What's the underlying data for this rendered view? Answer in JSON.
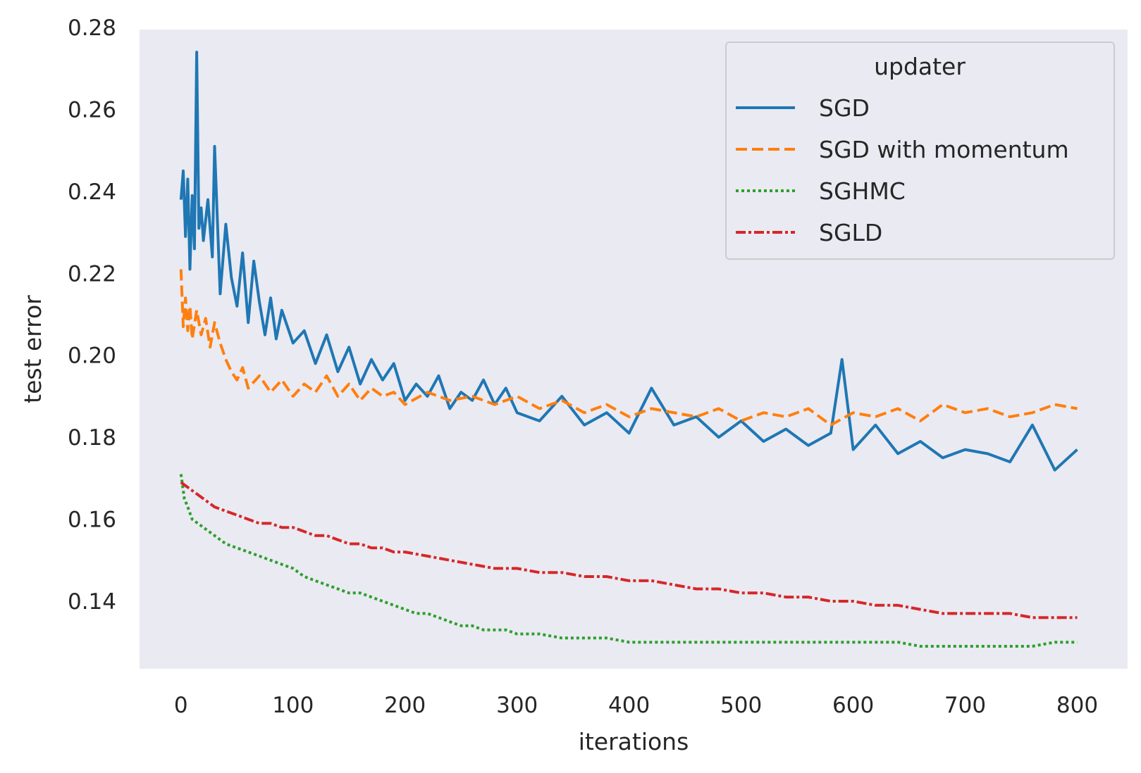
{
  "chart_data": {
    "type": "line",
    "xlabel": "iterations",
    "ylabel": "test error",
    "xlim": [
      -37,
      845
    ],
    "ylim": [
      0.1235,
      0.2795
    ],
    "x_ticks": [
      0,
      100,
      200,
      300,
      400,
      500,
      600,
      700,
      800
    ],
    "y_ticks": [
      0.14,
      0.16,
      0.18,
      0.2,
      0.22,
      0.24,
      0.26,
      0.28
    ],
    "x_tick_labels": [
      "0",
      "100",
      "200",
      "300",
      "400",
      "500",
      "600",
      "700",
      "800"
    ],
    "y_tick_labels": [
      "0.14",
      "0.16",
      "0.18",
      "0.20",
      "0.22",
      "0.24",
      "0.26",
      "0.28"
    ],
    "grid": false,
    "background": "#eaeaf2",
    "legend": {
      "title": "updater",
      "placement": "top-right"
    },
    "series": [
      {
        "name": "SGD",
        "color": "#1f77b4",
        "dash": "solid",
        "x": [
          0,
          2,
          4,
          6,
          8,
          10,
          12,
          14,
          16,
          18,
          20,
          24,
          28,
          30,
          35,
          40,
          45,
          50,
          55,
          60,
          65,
          70,
          75,
          80,
          85,
          90,
          100,
          110,
          120,
          130,
          140,
          150,
          160,
          170,
          180,
          190,
          200,
          210,
          220,
          230,
          240,
          250,
          260,
          270,
          280,
          290,
          300,
          320,
          340,
          360,
          380,
          400,
          420,
          440,
          460,
          480,
          500,
          520,
          540,
          560,
          580,
          590,
          600,
          620,
          640,
          660,
          680,
          700,
          720,
          740,
          760,
          780,
          800
        ],
        "y": [
          0.238,
          0.245,
          0.229,
          0.243,
          0.221,
          0.239,
          0.226,
          0.274,
          0.231,
          0.236,
          0.228,
          0.238,
          0.224,
          0.251,
          0.215,
          0.232,
          0.219,
          0.212,
          0.225,
          0.208,
          0.223,
          0.213,
          0.205,
          0.214,
          0.204,
          0.211,
          0.203,
          0.206,
          0.198,
          0.205,
          0.196,
          0.202,
          0.193,
          0.199,
          0.194,
          0.198,
          0.189,
          0.193,
          0.19,
          0.195,
          0.187,
          0.191,
          0.189,
          0.194,
          0.188,
          0.192,
          0.186,
          0.184,
          0.19,
          0.183,
          0.186,
          0.181,
          0.192,
          0.183,
          0.185,
          0.18,
          0.184,
          0.179,
          0.182,
          0.178,
          0.181,
          0.199,
          0.177,
          0.183,
          0.176,
          0.179,
          0.175,
          0.177,
          0.176,
          0.174,
          0.183,
          0.172,
          0.177
        ]
      },
      {
        "name": "SGD with momentum",
        "color": "#ff7f0e",
        "dash": "dashed",
        "x": [
          0,
          2,
          4,
          6,
          8,
          10,
          14,
          18,
          22,
          26,
          30,
          35,
          40,
          45,
          50,
          55,
          60,
          70,
          80,
          90,
          100,
          110,
          120,
          130,
          140,
          150,
          160,
          170,
          180,
          190,
          200,
          220,
          240,
          260,
          280,
          300,
          320,
          340,
          360,
          380,
          400,
          420,
          440,
          460,
          480,
          500,
          520,
          540,
          560,
          580,
          600,
          620,
          640,
          660,
          680,
          700,
          720,
          740,
          760,
          780,
          800
        ],
        "y": [
          0.221,
          0.207,
          0.214,
          0.206,
          0.212,
          0.204,
          0.211,
          0.205,
          0.209,
          0.202,
          0.208,
          0.203,
          0.199,
          0.196,
          0.194,
          0.197,
          0.192,
          0.195,
          0.191,
          0.194,
          0.19,
          0.193,
          0.191,
          0.195,
          0.19,
          0.193,
          0.189,
          0.192,
          0.19,
          0.191,
          0.188,
          0.191,
          0.189,
          0.19,
          0.188,
          0.19,
          0.187,
          0.189,
          0.186,
          0.188,
          0.185,
          0.187,
          0.186,
          0.185,
          0.187,
          0.184,
          0.186,
          0.185,
          0.187,
          0.183,
          0.186,
          0.185,
          0.187,
          0.184,
          0.188,
          0.186,
          0.187,
          0.185,
          0.186,
          0.188,
          0.187
        ]
      },
      {
        "name": "SGHMC",
        "color": "#2ca02c",
        "dash": "dotted",
        "x": [
          0,
          3,
          6,
          10,
          15,
          20,
          30,
          40,
          50,
          60,
          70,
          80,
          90,
          100,
          110,
          120,
          130,
          140,
          150,
          160,
          170,
          180,
          190,
          200,
          210,
          220,
          230,
          240,
          250,
          260,
          270,
          280,
          290,
          300,
          320,
          340,
          360,
          380,
          400,
          420,
          440,
          460,
          480,
          500,
          520,
          540,
          560,
          580,
          600,
          620,
          640,
          660,
          680,
          700,
          720,
          740,
          760,
          780,
          800
        ],
        "y": [
          0.171,
          0.165,
          0.163,
          0.16,
          0.159,
          0.158,
          0.156,
          0.154,
          0.153,
          0.152,
          0.151,
          0.15,
          0.149,
          0.148,
          0.146,
          0.145,
          0.144,
          0.143,
          0.142,
          0.142,
          0.141,
          0.14,
          0.139,
          0.138,
          0.137,
          0.137,
          0.136,
          0.135,
          0.134,
          0.134,
          0.133,
          0.133,
          0.133,
          0.132,
          0.132,
          0.131,
          0.131,
          0.131,
          0.13,
          0.13,
          0.13,
          0.13,
          0.13,
          0.13,
          0.13,
          0.13,
          0.13,
          0.13,
          0.13,
          0.13,
          0.13,
          0.129,
          0.129,
          0.129,
          0.129,
          0.129,
          0.129,
          0.13,
          0.13
        ]
      },
      {
        "name": "SGLD",
        "color": "#d62728",
        "dash": "dashdot",
        "x": [
          0,
          5,
          10,
          15,
          20,
          30,
          40,
          50,
          60,
          70,
          80,
          90,
          100,
          110,
          120,
          130,
          140,
          150,
          160,
          170,
          180,
          190,
          200,
          220,
          240,
          260,
          280,
          300,
          320,
          340,
          360,
          380,
          400,
          420,
          440,
          460,
          480,
          500,
          520,
          540,
          560,
          580,
          600,
          620,
          640,
          660,
          680,
          700,
          720,
          740,
          760,
          780,
          800
        ],
        "y": [
          0.169,
          0.168,
          0.167,
          0.166,
          0.165,
          0.163,
          0.162,
          0.161,
          0.16,
          0.159,
          0.159,
          0.158,
          0.158,
          0.157,
          0.156,
          0.156,
          0.155,
          0.154,
          0.154,
          0.153,
          0.153,
          0.152,
          0.152,
          0.151,
          0.15,
          0.149,
          0.148,
          0.148,
          0.147,
          0.147,
          0.146,
          0.146,
          0.145,
          0.145,
          0.144,
          0.143,
          0.143,
          0.142,
          0.142,
          0.141,
          0.141,
          0.14,
          0.14,
          0.139,
          0.139,
          0.138,
          0.137,
          0.137,
          0.137,
          0.137,
          0.136,
          0.136,
          0.136
        ]
      }
    ]
  }
}
